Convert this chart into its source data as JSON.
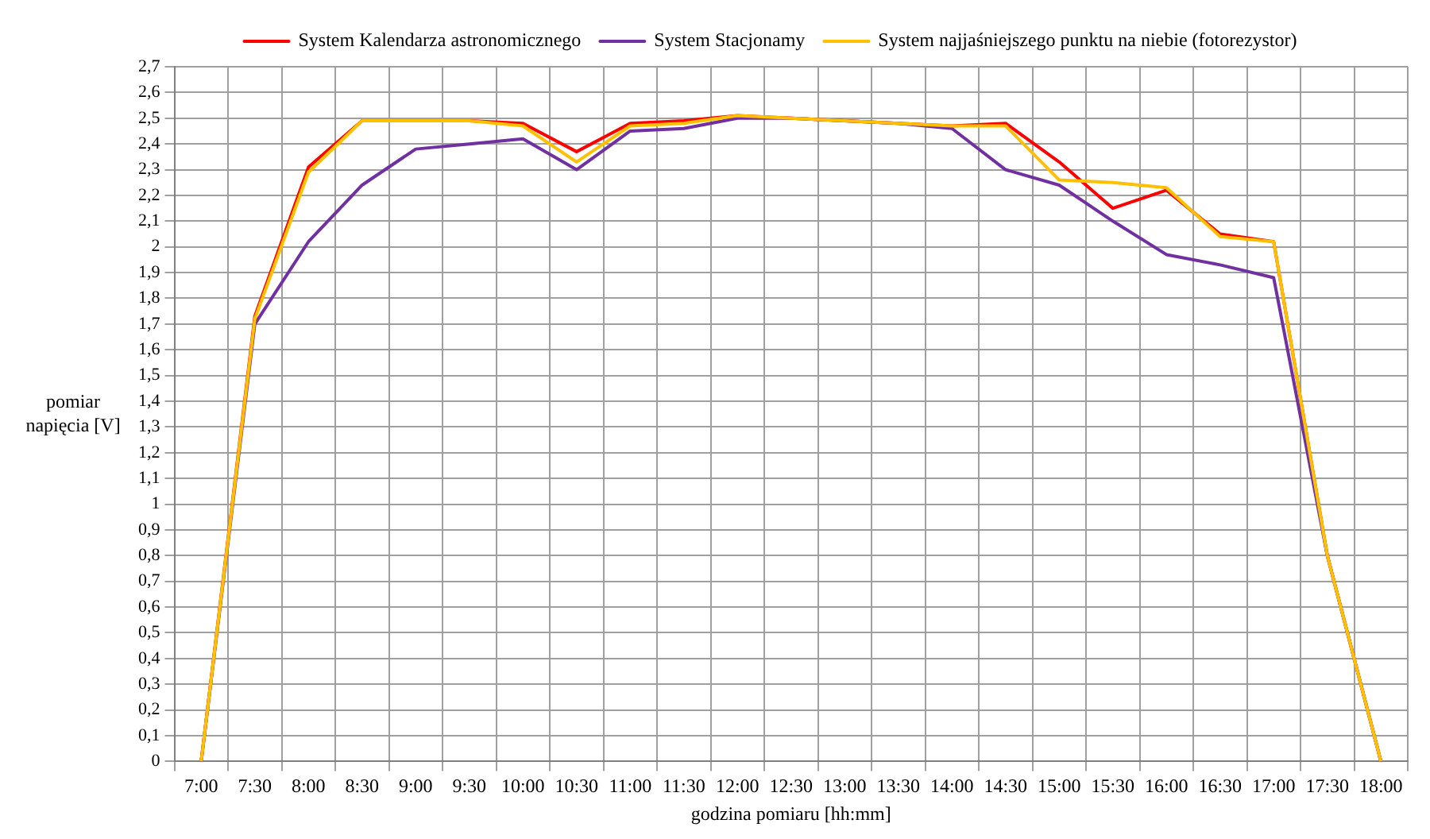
{
  "chart_data": {
    "type": "line",
    "xlabel": "godzina pomiaru [hh:mm]",
    "ylabel": "pomiar napięcia [V]",
    "categories": [
      "7:00",
      "7:30",
      "8:00",
      "8:30",
      "9:00",
      "9:30",
      "10:00",
      "10:30",
      "11:00",
      "11:30",
      "12:00",
      "12:30",
      "13:00",
      "13:30",
      "14:00",
      "14:30",
      "15:00",
      "15:30",
      "16:00",
      "16:30",
      "17:00",
      "17:30",
      "18:00"
    ],
    "series": [
      {
        "name": "System Kalendarza astronomicznego",
        "color": "#ff0000",
        "values": [
          0,
          1.73,
          2.31,
          2.49,
          2.49,
          2.49,
          2.48,
          2.37,
          2.48,
          2.49,
          2.51,
          2.5,
          2.49,
          2.48,
          2.47,
          2.48,
          2.33,
          2.15,
          2.22,
          2.05,
          2.02,
          0.8,
          0
        ]
      },
      {
        "name": "System Stacjonamy",
        "color": "#7030a0",
        "values": [
          0,
          1.7,
          2.02,
          2.24,
          2.38,
          2.4,
          2.42,
          2.3,
          2.45,
          2.46,
          2.5,
          2.5,
          2.49,
          2.48,
          2.46,
          2.3,
          2.24,
          2.1,
          1.97,
          1.93,
          1.88,
          0.8,
          0
        ]
      },
      {
        "name": "System najjaśniejszego punktu na niebie (fotorezystor)",
        "color": "#ffc000",
        "values": [
          0,
          1.72,
          2.29,
          2.49,
          2.49,
          2.49,
          2.47,
          2.33,
          2.47,
          2.48,
          2.51,
          2.5,
          2.49,
          2.48,
          2.47,
          2.47,
          2.26,
          2.25,
          2.23,
          2.04,
          2.02,
          0.8,
          0
        ]
      }
    ],
    "ylim": [
      0,
      2.7
    ],
    "yticks": [
      0,
      {
        "value": 0.1,
        "label": "0,1"
      },
      {
        "value": 0.2,
        "label": "0,2"
      },
      {
        "value": 0.3,
        "label": "0,3"
      },
      {
        "value": 0.4,
        "label": "0,4"
      },
      {
        "value": 0.5,
        "label": "0,5"
      },
      {
        "value": 0.6,
        "label": "0,6"
      },
      {
        "value": 0.7,
        "label": "0,7"
      },
      {
        "value": 0.8,
        "label": "0,8"
      },
      {
        "value": 0.9,
        "label": "0,9"
      },
      1,
      {
        "value": 1.1,
        "label": "1,1"
      },
      {
        "value": 1.2,
        "label": "1,2"
      },
      {
        "value": 1.3,
        "label": "1,3"
      },
      {
        "value": 1.4,
        "label": "1,4"
      },
      {
        "value": 1.5,
        "label": "1,5"
      },
      {
        "value": 1.6,
        "label": "1,6"
      },
      {
        "value": 1.7,
        "label": "1,7"
      },
      {
        "value": 1.8,
        "label": "1,8"
      },
      {
        "value": 1.9,
        "label": "1,9"
      },
      2,
      {
        "value": 2.1,
        "label": "2,1"
      },
      {
        "value": 2.2,
        "label": "2,2"
      },
      {
        "value": 2.3,
        "label": "2,3"
      },
      {
        "value": 2.4,
        "label": "2,4"
      },
      {
        "value": 2.5,
        "label": "2,5"
      },
      {
        "value": 2.6,
        "label": "2,6"
      },
      {
        "value": 2.7,
        "label": "2,7"
      }
    ],
    "grid": true,
    "legend": "top",
    "marker": "none",
    "line_style": "solid"
  }
}
